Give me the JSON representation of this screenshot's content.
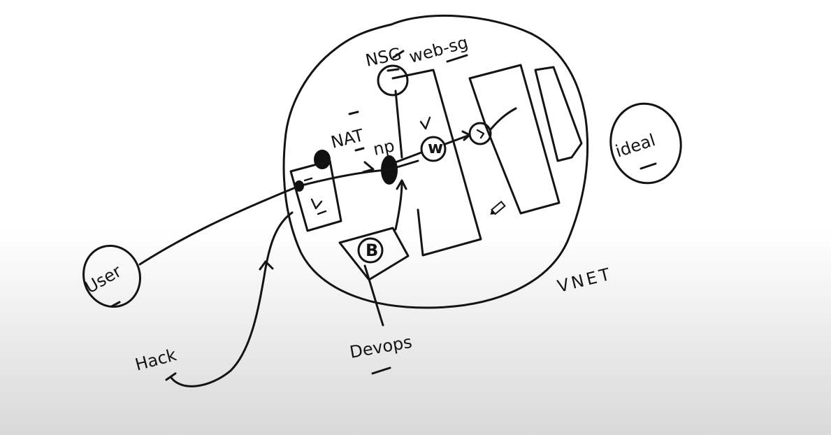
{
  "labels": {
    "nsg": "NSG",
    "web_sg": "web-sg",
    "nat": "NAT",
    "np": "np",
    "vnet": "VNET",
    "user": "User",
    "hack": "Hack",
    "devops": "Devops",
    "ideal": "ideal",
    "bastion": "B",
    "web_vm": "w"
  },
  "colors": {
    "ink": "#141414",
    "background_top": "#ffffff",
    "background_bottom": "#d9d9d9"
  },
  "icons": {
    "pencil_cursor": "pencil-icon"
  }
}
